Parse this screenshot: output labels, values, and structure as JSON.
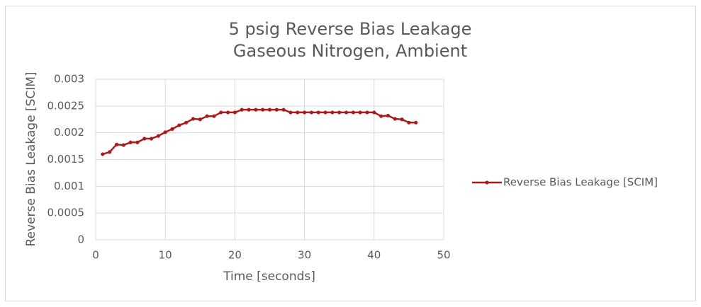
{
  "chart_data": {
    "type": "line",
    "title": "5 psig Reverse Bias Leakage",
    "subtitle": "Gaseous Nitrogen, Ambient",
    "x_label": "Time [seconds]",
    "y_label": "Reverse Bias Leakage [SCIM]",
    "x": [
      1,
      2,
      3,
      4,
      5,
      6,
      7,
      8,
      9,
      10,
      11,
      12,
      13,
      14,
      15,
      16,
      17,
      18,
      19,
      20,
      21,
      22,
      23,
      24,
      25,
      26,
      27,
      28,
      29,
      30,
      31,
      32,
      33,
      34,
      35,
      36,
      37,
      38,
      39,
      40,
      41,
      42,
      43,
      44,
      45,
      46
    ],
    "series": [
      {
        "name": "Reverse Bias Leakage [SCIM]",
        "color": "#a81c1c",
        "values": [
          0.0016,
          0.00164,
          0.00178,
          0.00177,
          0.00182,
          0.00182,
          0.00189,
          0.00189,
          0.00194,
          0.00201,
          0.00207,
          0.00214,
          0.00219,
          0.00226,
          0.00225,
          0.00231,
          0.00231,
          0.00238,
          0.00238,
          0.00238,
          0.00243,
          0.00243,
          0.00243,
          0.00243,
          0.00243,
          0.00243,
          0.00243,
          0.00238,
          0.00238,
          0.00238,
          0.00238,
          0.00238,
          0.00238,
          0.00238,
          0.00238,
          0.00238,
          0.00238,
          0.00238,
          0.00238,
          0.00238,
          0.00231,
          0.00232,
          0.00226,
          0.00225,
          0.00219,
          0.00219
        ]
      }
    ],
    "xlim": [
      0,
      50
    ],
    "xticks": [
      0,
      10,
      20,
      30,
      40,
      50
    ],
    "ylim": [
      0,
      0.003
    ],
    "yticks": [
      0,
      0.0005,
      0.001,
      0.0015,
      0.002,
      0.0025,
      0.003
    ],
    "grid": true,
    "legend": "right"
  }
}
